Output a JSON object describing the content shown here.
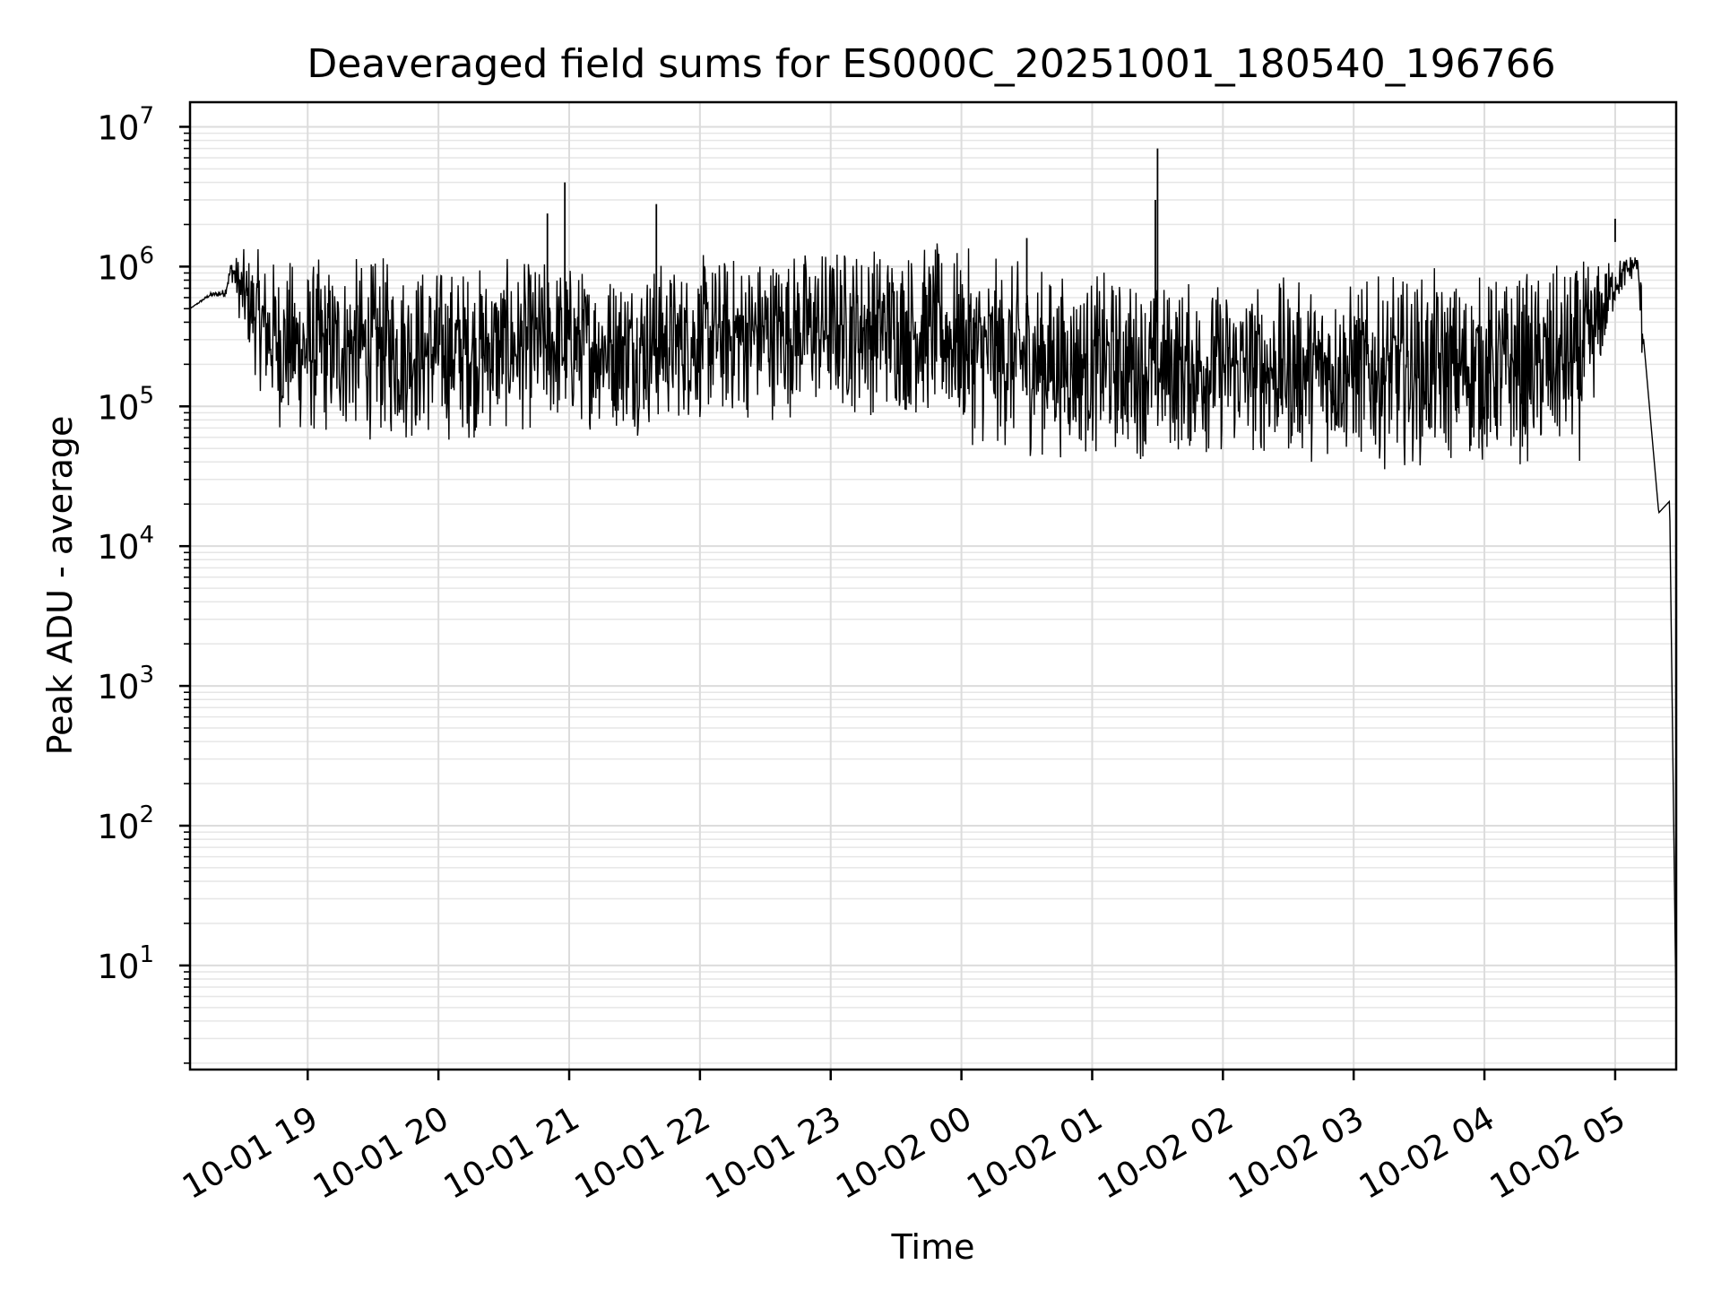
{
  "chart_data": {
    "type": "line",
    "title": "Deaveraged field sums for ES000C_20251001_180540_196766",
    "xlabel": "Time",
    "ylabel": "Peak ADU - average",
    "yscale": "log",
    "ylim": [
      1.8,
      15000000
    ],
    "xlim": [
      "10-01 18:06",
      "10-02 05:28"
    ],
    "grid": true,
    "line_color": "#000000",
    "x_ticks": [
      "10-01 19",
      "10-01 20",
      "10-01 21",
      "10-01 22",
      "10-01 23",
      "10-02 00",
      "10-02 01",
      "10-02 02",
      "10-02 03",
      "10-02 04",
      "10-02 05"
    ],
    "y_ticks": [
      {
        "base": "10",
        "exp": "1",
        "value": 10
      },
      {
        "base": "10",
        "exp": "2",
        "value": 100
      },
      {
        "base": "10",
        "exp": "3",
        "value": 1000
      },
      {
        "base": "10",
        "exp": "4",
        "value": 10000
      },
      {
        "base": "10",
        "exp": "5",
        "value": 100000
      },
      {
        "base": "10",
        "exp": "6",
        "value": 1000000
      },
      {
        "base": "10",
        "exp": "7",
        "value": 10000000
      }
    ],
    "series": [
      {
        "x": [
          "10-01 18:06",
          "10-01 18:15",
          "10-01 18:22",
          "10-01 18:25",
          "10-01 18:30",
          "10-01 18:36",
          "10-01 18:42",
          "10-01 18:48",
          "10-01 19:00",
          "10-01 19:20",
          "10-01 19:40",
          "10-01 20:00",
          "10-01 20:20",
          "10-01 20:40",
          "10-01 20:50",
          "10-01 20:58",
          "10-01 21:10",
          "10-01 21:30",
          "10-01 21:40",
          "10-01 21:50",
          "10-01 22:10",
          "10-01 22:30",
          "10-01 22:50",
          "10-01 23:10",
          "10-01 23:30",
          "10-01 23:50",
          "10-02 00:10",
          "10-02 00:30",
          "10-02 00:50",
          "10-02 01:10",
          "10-02 01:30",
          "10-02 01:50",
          "10-02 02:10",
          "10-02 02:30",
          "10-02 02:50",
          "10-02 03:10",
          "10-02 03:30",
          "10-02 03:50",
          "10-02 04:10",
          "10-02 04:30",
          "10-02 04:45",
          "10-02 05:00",
          "10-02 05:10",
          "10-02 05:15",
          "10-02 05:20",
          "10-02 05:25",
          "10-02 05:28"
        ],
        "lo": [
          500000,
          600000,
          600000,
          800000,
          300000,
          150000,
          80000,
          60000,
          50000,
          55000,
          50000,
          50000,
          55000,
          60000,
          60000,
          60000,
          65000,
          60000,
          60000,
          70000,
          70000,
          75000,
          80000,
          80000,
          80000,
          70000,
          45000,
          40000,
          40000,
          40000,
          40000,
          40000,
          40000,
          38000,
          38000,
          35000,
          35000,
          35000,
          35000,
          35000,
          38000,
          500000,
          900000,
          30000,
          15000,
          20000,
          4
        ],
        "hi": [
          500000,
          650000,
          700000,
          1200000,
          1400000,
          1400000,
          1400000,
          1300000,
          1300000,
          1300000,
          1300000,
          1200000,
          1200000,
          1200000,
          1300000,
          1300000,
          1100000,
          1200000,
          1300000,
          1200000,
          1400000,
          1500000,
          1600000,
          1700000,
          1700000,
          1600000,
          1300000,
          1200000,
          1000000,
          1000000,
          900000,
          900000,
          900000,
          900000,
          900000,
          900000,
          1000000,
          1000000,
          1000000,
          1100000,
          1200000,
          1200000,
          1300000,
          600000,
          20000,
          22000,
          4
        ]
      }
    ],
    "spikes": [
      {
        "x": "10-01 20:58",
        "y": 4000000
      },
      {
        "x": "10-01 20:50",
        "y": 2400000
      },
      {
        "x": "10-01 21:40",
        "y": 2800000
      },
      {
        "x": "10-02 00:30",
        "y": 1600000
      },
      {
        "x": "10-02 01:30",
        "y": 7000000
      },
      {
        "x": "10-02 01:29",
        "y": 3000000
      },
      {
        "x": "10-02 05:00",
        "y": 2200000
      }
    ]
  }
}
